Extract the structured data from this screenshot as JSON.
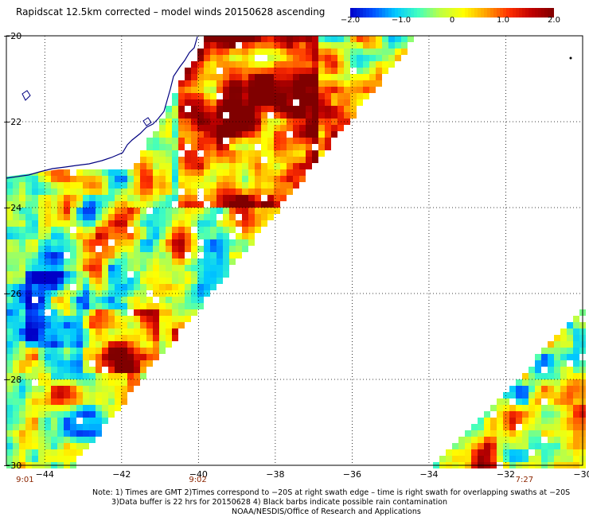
{
  "title": "Rapidscat 12.5km corrected – model winds 20150628 ascending",
  "colorbar": {
    "ticks": [
      "−2.0",
      "−1.0",
      "0",
      "1.0",
      "2.0"
    ],
    "tick_values": [
      -2.0,
      -1.0,
      0,
      1.0,
      2.0
    ],
    "range": [
      -2.0,
      2.0
    ],
    "colors": [
      "#0000c8",
      "#0050ff",
      "#00c8ff",
      "#40ffc0",
      "#c0ff40",
      "#ffff00",
      "#ffa000",
      "#ff3000",
      "#c00000",
      "#800000"
    ]
  },
  "map": {
    "lon_range": [
      -45,
      -30
    ],
    "lat_range": [
      -30,
      -20
    ],
    "lat_labels": [
      "−20",
      "−22",
      "−24",
      "−26",
      "−28",
      "−30"
    ],
    "lat_values": [
      -20,
      -22,
      -24,
      -26,
      -28,
      -30
    ],
    "lon_labels": [
      "−44",
      "−42",
      "−40",
      "−38",
      "−36",
      "−34",
      "−32",
      "−30"
    ],
    "lon_values": [
      -44,
      -42,
      -40,
      -38,
      -36,
      -34,
      -32,
      -30
    ],
    "grid_style": "dotted",
    "coastline_color": "#000080"
  },
  "time_labels": [
    {
      "text": "9:01",
      "lon": -44.5
    },
    {
      "text": "9:02",
      "lon": -40
    },
    {
      "text": "7:27",
      "lon": -31.5
    }
  ],
  "notes": {
    "line1": "Note: 1) Times are GMT 2)Times correspond to −20S at right swath edge – time is right swath for overlapping swaths at −20S",
    "line2": "3)Data buffer is 22 hrs for 20150628 4) Black barbs indicate possible rain contamination",
    "line3": "NOAA/NESDIS/Office of Research and Applications"
  }
}
